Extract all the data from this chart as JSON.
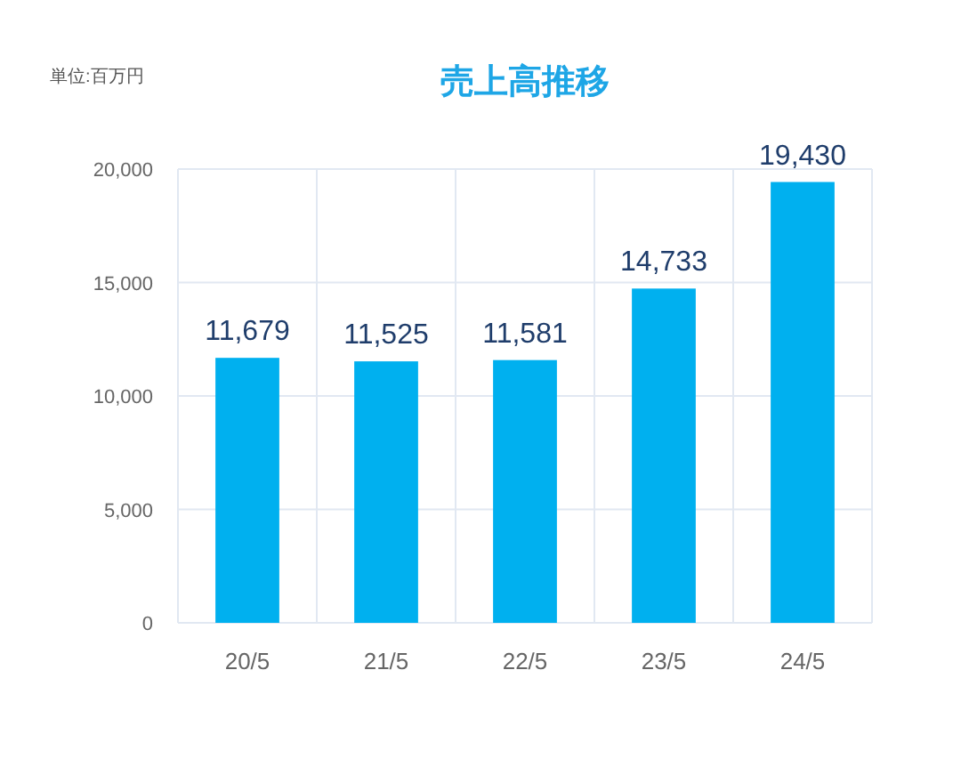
{
  "chart_data": {
    "type": "bar",
    "title": "売上高推移",
    "ylabel": "単位:百万円",
    "categories": [
      "20/5",
      "21/5",
      "22/5",
      "23/5",
      "24/5"
    ],
    "values": [
      11679,
      11525,
      11581,
      14733,
      19430
    ],
    "value_labels": [
      "11,679",
      "11,525",
      "11,581",
      "14,733",
      "19,430"
    ],
    "color": "#00b0ef",
    "ylim": [
      0,
      20000
    ],
    "yticks": [
      {
        "value": 0,
        "label": "0"
      },
      {
        "value": 5000,
        "label": "5,000"
      },
      {
        "value": 10000,
        "label": "10,000"
      },
      {
        "value": 15000,
        "label": "15,000"
      },
      {
        "value": 20000,
        "label": "20,000"
      }
    ],
    "grid": true
  }
}
